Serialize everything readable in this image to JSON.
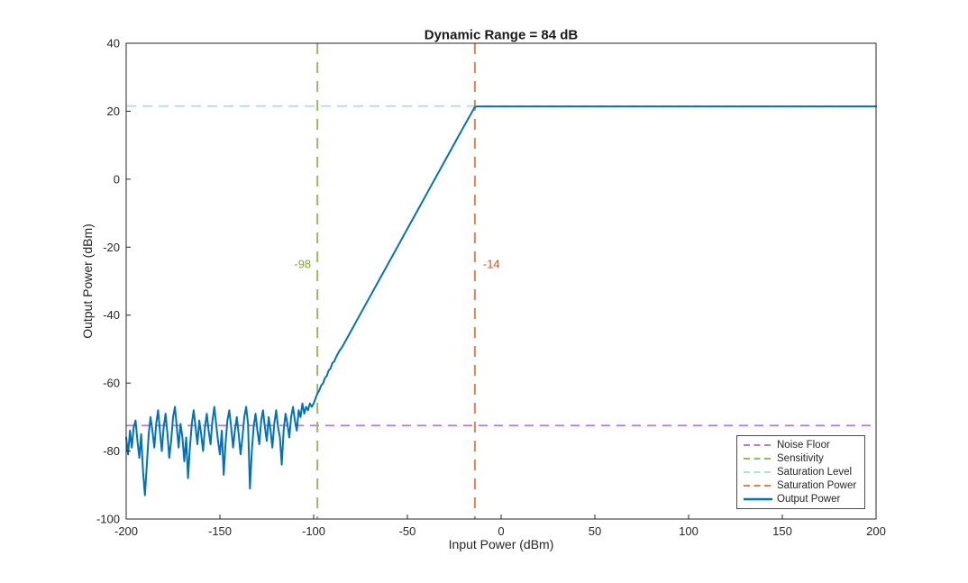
{
  "figure": {
    "background": "#ffffff",
    "axis_color": "#262626"
  },
  "chart_data": {
    "type": "line",
    "title": "Dynamic Range = 84 dB",
    "xlabel": "Input Power (dBm)",
    "ylabel": "Output Power (dBm)",
    "xlim": [
      -200,
      200
    ],
    "ylim": [
      -100,
      40
    ],
    "x_ticks": [
      -200,
      -150,
      -100,
      -50,
      0,
      50,
      100,
      150,
      200
    ],
    "y_ticks": [
      -100,
      -80,
      -60,
      -40,
      -20,
      0,
      20,
      40
    ],
    "grid": false,
    "dynamic_range_db": 84,
    "sensitivity_dbm": -98,
    "saturation_power_dbm": -14,
    "noise_floor_dbm": -72.5,
    "saturation_level_dbm": 21.5,
    "linear_gain_db": 35.4,
    "reference_lines": [
      {
        "name": "Noise Floor",
        "orientation": "horizontal",
        "value": -72.5,
        "color": "#B97CCF",
        "width": 1.8,
        "dash": "10 7"
      },
      {
        "name": "Sensitivity",
        "orientation": "vertical",
        "value": -98,
        "color": "#8FBE5C",
        "width": 2,
        "dash": "12 9"
      },
      {
        "name": "Saturation Level",
        "orientation": "horizontal",
        "value": 21.5,
        "color": "#ABDCF0",
        "width": 1.8,
        "dash": "11 7"
      },
      {
        "name": "Saturation Power",
        "orientation": "vertical",
        "value": -14,
        "color": "#EB7D4E",
        "width": 2,
        "dash": "12 9"
      }
    ],
    "annotations": [
      {
        "text": "-98",
        "x": -98,
        "y": -25,
        "color": "#77AC30",
        "align": "right"
      },
      {
        "text": "-14",
        "x": -14,
        "y": -25,
        "color": "#D95319",
        "align": "left"
      }
    ],
    "legend": {
      "position": "inside-bottom-right",
      "items": [
        {
          "label": "Noise Floor",
          "color": "#B97CCF",
          "line_style": "dashed"
        },
        {
          "label": "Sensitivity",
          "color": "#8FBE5C",
          "line_style": "dashed"
        },
        {
          "label": "Saturation Level",
          "color": "#ABDCF0",
          "line_style": "dashed"
        },
        {
          "label": "Saturation Power",
          "color": "#EB7D4E",
          "line_style": "dashed"
        },
        {
          "label": "Output Power",
          "color": "#0072BD",
          "line_style": "solid"
        }
      ]
    },
    "series": [
      {
        "name": "Output Power",
        "color": "#0072BD",
        "width": 2,
        "style": "solid",
        "points": [
          [
            -200,
            -76
          ],
          [
            -199,
            -81
          ],
          [
            -198,
            -74
          ],
          [
            -197,
            -79
          ],
          [
            -196,
            -73
          ],
          [
            -195,
            -71
          ],
          [
            -194,
            -77
          ],
          [
            -193,
            -82
          ],
          [
            -192,
            -75
          ],
          [
            -191,
            -86
          ],
          [
            -190,
            -93
          ],
          [
            -189,
            -84
          ],
          [
            -188,
            -75
          ],
          [
            -187,
            -70
          ],
          [
            -186,
            -74
          ],
          [
            -185,
            -79
          ],
          [
            -184,
            -72
          ],
          [
            -183,
            -68
          ],
          [
            -182,
            -74
          ],
          [
            -181,
            -80
          ],
          [
            -180,
            -73
          ],
          [
            -179,
            -69
          ],
          [
            -178,
            -75
          ],
          [
            -177,
            -82
          ],
          [
            -176,
            -77
          ],
          [
            -175,
            -70
          ],
          [
            -174,
            -67
          ],
          [
            -173,
            -73
          ],
          [
            -172,
            -79
          ],
          [
            -171,
            -72
          ],
          [
            -170,
            -76
          ],
          [
            -169,
            -83
          ],
          [
            -168,
            -76
          ],
          [
            -167,
            -88
          ],
          [
            -166,
            -79
          ],
          [
            -165,
            -72
          ],
          [
            -164,
            -68
          ],
          [
            -163,
            -73
          ],
          [
            -162,
            -78
          ],
          [
            -161,
            -71
          ],
          [
            -160,
            -75
          ],
          [
            -159,
            -80
          ],
          [
            -158,
            -73
          ],
          [
            -157,
            -69
          ],
          [
            -156,
            -74
          ],
          [
            -155,
            -78
          ],
          [
            -154,
            -71
          ],
          [
            -153,
            -67
          ],
          [
            -152,
            -72
          ],
          [
            -151,
            -77
          ],
          [
            -150,
            -81
          ],
          [
            -149,
            -74
          ],
          [
            -148,
            -87
          ],
          [
            -147,
            -78
          ],
          [
            -146,
            -71
          ],
          [
            -145,
            -68
          ],
          [
            -144,
            -73
          ],
          [
            -143,
            -79
          ],
          [
            -142,
            -74
          ],
          [
            -141,
            -70
          ],
          [
            -140,
            -75
          ],
          [
            -139,
            -81
          ],
          [
            -138,
            -76
          ],
          [
            -137,
            -70
          ],
          [
            -136,
            -67
          ],
          [
            -135,
            -72
          ],
          [
            -134,
            -91
          ],
          [
            -133,
            -80
          ],
          [
            -132,
            -73
          ],
          [
            -131,
            -69
          ],
          [
            -130,
            -74
          ],
          [
            -129,
            -78
          ],
          [
            -128,
            -71
          ],
          [
            -127,
            -68
          ],
          [
            -126,
            -73
          ],
          [
            -125,
            -77
          ],
          [
            -124,
            -70
          ],
          [
            -123,
            -74
          ],
          [
            -122,
            -79
          ],
          [
            -121,
            -72
          ],
          [
            -120,
            -68
          ],
          [
            -119,
            -73
          ],
          [
            -118,
            -76
          ],
          [
            -117,
            -84
          ],
          [
            -116,
            -74
          ],
          [
            -115,
            -69
          ],
          [
            -114,
            -72
          ],
          [
            -113,
            -76
          ],
          [
            -112,
            -70
          ],
          [
            -111,
            -67
          ],
          [
            -110,
            -71
          ],
          [
            -109,
            -74
          ],
          [
            -108,
            -68
          ],
          [
            -107,
            -70
          ],
          [
            -106,
            -66
          ],
          [
            -105,
            -69
          ],
          [
            -104,
            -67
          ],
          [
            -103,
            -68
          ],
          [
            -102,
            -66
          ],
          [
            -101,
            -67
          ],
          [
            -100,
            -66
          ],
          [
            -99,
            -64.5
          ],
          [
            -98,
            -63
          ],
          [
            -97,
            -62.2
          ],
          [
            -96,
            -60.7
          ],
          [
            -95,
            -60.1
          ],
          [
            -94,
            -58.5
          ],
          [
            -93,
            -57.9
          ],
          [
            -92,
            -56.3
          ],
          [
            -91,
            -55.7
          ],
          [
            -90,
            -54.1
          ],
          [
            -89,
            -53.6
          ],
          [
            -88,
            -52.3
          ],
          [
            -87,
            -51.3
          ],
          [
            -86,
            -50.3
          ],
          [
            -85,
            -49.6
          ],
          [
            -80,
            -44.6
          ],
          [
            -75,
            -39.6
          ],
          [
            -70,
            -34.6
          ],
          [
            -65,
            -29.6
          ],
          [
            -60,
            -24.6
          ],
          [
            -55,
            -19.6
          ],
          [
            -50,
            -14.6
          ],
          [
            -45,
            -9.6
          ],
          [
            -40,
            -4.6
          ],
          [
            -35,
            0.4
          ],
          [
            -30,
            5.4
          ],
          [
            -25,
            10.4
          ],
          [
            -20,
            15.4
          ],
          [
            -16,
            19.3
          ],
          [
            -15,
            20.3
          ],
          [
            -14.5,
            20.8
          ],
          [
            -14,
            21.2
          ],
          [
            -13,
            21.4
          ],
          [
            -12,
            21.4
          ],
          [
            0,
            21.4
          ],
          [
            50,
            21.4
          ],
          [
            100,
            21.4
          ],
          [
            150,
            21.4
          ],
          [
            200,
            21.4
          ]
        ]
      }
    ]
  }
}
